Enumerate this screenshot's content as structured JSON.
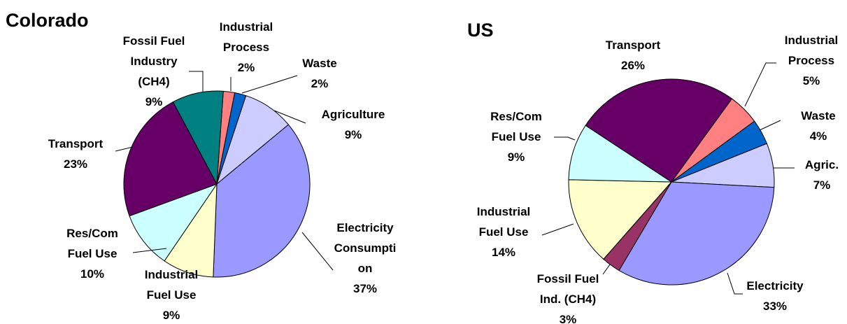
{
  "chart_data": [
    {
      "type": "pie",
      "title": "Colorado",
      "start_angle": 4,
      "categories": [
        "Industrial\nProcess",
        "Waste",
        "Agriculture",
        "Electricity\nConsumpti\non",
        "Industrial\nFuel Use",
        "Res/Com\nFuel Use",
        "Transport",
        "Fossil Fuel\nIndustry\n(CH4)"
      ],
      "values": [
        2,
        2,
        9,
        37,
        9,
        10,
        23,
        9
      ],
      "value_labels": [
        "2%",
        "2%",
        "9%",
        "37%",
        "9%",
        "10%",
        "23%",
        "9%"
      ],
      "colors": [
        "#ff8080",
        "#0066cc",
        "#ccccff",
        "#9999ff",
        "#ffffcc",
        "#ccffff",
        "#660066",
        "#008080"
      ]
    },
    {
      "type": "pie",
      "title": "US",
      "start_angle": 36,
      "categories": [
        "Industrial\nProcess",
        "Waste",
        "Agric.",
        "Electricity",
        "Fossil Fuel\nInd. (CH4)",
        "Industrial\nFuel Use",
        "Res/Com\nFuel Use",
        "Transport"
      ],
      "values": [
        5,
        4,
        7,
        33,
        3,
        14,
        9,
        26
      ],
      "value_labels": [
        "5%",
        "4%",
        "7%",
        "33%",
        "3%",
        "14%",
        "9%",
        "26%"
      ],
      "colors": [
        "#ff8080",
        "#0066cc",
        "#ccccff",
        "#9999ff",
        "#993366",
        "#ffffcc",
        "#ccffff",
        "#660066"
      ]
    }
  ]
}
